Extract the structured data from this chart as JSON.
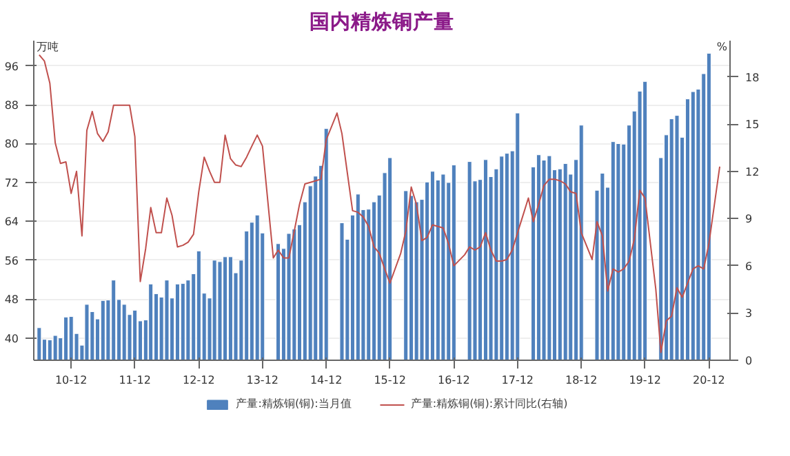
{
  "chart_data": {
    "type": "bar",
    "title": "国内精炼铜产量",
    "ylabel": "万吨",
    "y2label": "%",
    "x": [
      "2010-06",
      "2010-07",
      "2010-08",
      "2010-09",
      "2010-10",
      "2010-11",
      "2010-12",
      "2011-01",
      "2011-02",
      "2011-03",
      "2011-04",
      "2011-05",
      "2011-06",
      "2011-07",
      "2011-08",
      "2011-09",
      "2011-10",
      "2011-11",
      "2011-12",
      "2012-01",
      "2012-02",
      "2012-03",
      "2012-04",
      "2012-05",
      "2012-06",
      "2012-07",
      "2012-08",
      "2012-09",
      "2012-10",
      "2012-11",
      "2012-12",
      "2013-01",
      "2013-02",
      "2013-03",
      "2013-04",
      "2013-05",
      "2013-06",
      "2013-07",
      "2013-08",
      "2013-09",
      "2013-10",
      "2013-11",
      "2013-12",
      "2014-01",
      "2014-02",
      "2014-03",
      "2014-04",
      "2014-05",
      "2014-06",
      "2014-07",
      "2014-08",
      "2014-09",
      "2014-10",
      "2014-11",
      "2014-12",
      "2015-01",
      "2015-02",
      "2015-03",
      "2015-04",
      "2015-05",
      "2015-06",
      "2015-07",
      "2015-08",
      "2015-09",
      "2015-10",
      "2015-11",
      "2015-12",
      "2016-01",
      "2016-02",
      "2016-03",
      "2016-04",
      "2016-05",
      "2016-06",
      "2016-07",
      "2016-08",
      "2016-09",
      "2016-10",
      "2016-11",
      "2016-12",
      "2017-01",
      "2017-02",
      "2017-03",
      "2017-04",
      "2017-05",
      "2017-06",
      "2017-07",
      "2017-08",
      "2017-09",
      "2017-10",
      "2017-11",
      "2017-12",
      "2018-01",
      "2018-02",
      "2018-03",
      "2018-04",
      "2018-05",
      "2018-06",
      "2018-07",
      "2018-08",
      "2018-09",
      "2018-10",
      "2018-11",
      "2018-12",
      "2019-01",
      "2019-02",
      "2019-03",
      "2019-04",
      "2019-05",
      "2019-06",
      "2019-07",
      "2019-08",
      "2019-09",
      "2019-10",
      "2019-11",
      "2019-12",
      "2020-01",
      "2020-02",
      "2020-03",
      "2020-04",
      "2020-05",
      "2020-06",
      "2020-07",
      "2020-08",
      "2020-09",
      "2020-10",
      "2020-11",
      "2020-12"
    ],
    "series": [
      {
        "name": "产量:精炼铜(铜):当月值",
        "color": "#4f81bd",
        "values": [
          42.1,
          39.7,
          39.6,
          40.5,
          40.0,
          44.3,
          44.4,
          40.9,
          38.5,
          46.9,
          45.4,
          43.9,
          47.7,
          47.8,
          51.9,
          47.9,
          46.9,
          44.8,
          45.7,
          43.5,
          43.7,
          51.1,
          49.1,
          48.4,
          51.9,
          48.2,
          51.1,
          51.2,
          51.9,
          53.2,
          57.9,
          49.2,
          48.2,
          56.0,
          55.7,
          56.7,
          56.7,
          53.4,
          56.0,
          62.0,
          63.8,
          65.3,
          61.6,
          null,
          null,
          59.4,
          58.4,
          61.5,
          62.4,
          63.3,
          68.0,
          71.3,
          73.3,
          75.5,
          83.1,
          null,
          null,
          63.7,
          60.3,
          65.3,
          69.6,
          66.4,
          66.5,
          68.0,
          69.4,
          74.0,
          77.1,
          null,
          null,
          70.3,
          69.3,
          68.0,
          68.5,
          72.1,
          74.3,
          72.5,
          73.7,
          72.0,
          75.6,
          null,
          null,
          76.3,
          72.3,
          72.6,
          76.7,
          73.2,
          74.8,
          77.4,
          78.0,
          78.5,
          86.3,
          null,
          null,
          75.2,
          77.7,
          76.6,
          77.5,
          74.6,
          74.8,
          75.9,
          73.7,
          76.7,
          83.8,
          null,
          null,
          70.4,
          73.9,
          71.0,
          80.4,
          80.0,
          79.9,
          83.8,
          86.7,
          90.8,
          92.8,
          null,
          null,
          77.1,
          81.8,
          85.1,
          85.8,
          81.3,
          89.2,
          90.7,
          91.2,
          94.4,
          98.6
        ]
      },
      {
        "name": "产量:精炼铜(铜):累计同比(右轴)",
        "type": "line",
        "axis": "y2",
        "color": "#c0504d",
        "x": [
          "2010-06",
          "2010-07",
          "2010-08",
          "2010-09",
          "2010-10",
          "2010-11",
          "2010-12",
          "2011-01",
          "2011-02",
          "2011-03",
          "2011-04",
          "2011-05",
          "2011-06",
          "2011-07",
          "2011-08",
          "2011-09",
          "2011-10",
          "2011-11",
          "2011-12",
          "2012-01",
          "2012-02",
          "2012-03",
          "2012-04",
          "2012-05",
          "2012-06",
          "2012-07",
          "2012-08",
          "2012-09",
          "2012-10",
          "2012-11",
          "2012-12",
          "2013-01",
          "2013-02",
          "2013-03",
          "2013-04",
          "2013-05",
          "2013-06",
          "2013-07",
          "2013-08",
          "2013-09",
          "2013-10",
          "2013-11",
          "2013-12",
          "2014-02",
          "2014-03",
          "2014-04",
          "2014-05",
          "2014-06",
          "2014-07",
          "2014-08",
          "2014-09",
          "2014-10",
          "2014-11",
          "2014-12",
          "2015-02",
          "2015-03",
          "2015-04",
          "2015-05",
          "2015-06",
          "2015-07",
          "2015-08",
          "2015-09",
          "2015-10",
          "2015-11",
          "2015-12",
          "2016-02",
          "2016-03",
          "2016-04",
          "2016-05",
          "2016-06",
          "2016-07",
          "2016-08",
          "2016-09",
          "2016-10",
          "2016-11",
          "2016-12",
          "2017-02",
          "2017-03",
          "2017-04",
          "2017-05",
          "2017-06",
          "2017-07",
          "2017-08",
          "2017-09",
          "2017-10",
          "2017-11",
          "2017-12",
          "2018-02",
          "2018-03",
          "2018-04",
          "2018-05",
          "2018-06",
          "2018-07",
          "2018-08",
          "2018-09",
          "2018-10",
          "2018-11",
          "2018-12",
          "2019-02",
          "2019-03",
          "2019-04",
          "2019-05",
          "2019-06",
          "2019-07",
          "2019-08",
          "2019-09",
          "2019-10",
          "2019-11",
          "2019-12",
          "2020-02",
          "2020-03",
          "2020-04",
          "2020-05",
          "2020-06",
          "2020-07",
          "2020-08",
          "2020-09",
          "2020-10",
          "2020-11",
          "2020-12",
          "2021-02"
        ],
        "values": [
          19.4,
          19.0,
          17.6,
          13.8,
          12.5,
          12.6,
          10.6,
          12.0,
          7.9,
          14.6,
          15.8,
          14.4,
          13.9,
          14.5,
          16.2,
          16.2,
          16.2,
          16.2,
          14.2,
          5.0,
          7.1,
          9.7,
          8.1,
          8.1,
          10.3,
          9.2,
          7.2,
          7.3,
          7.5,
          8.0,
          10.7,
          12.9,
          12.0,
          11.3,
          11.3,
          14.3,
          12.8,
          12.4,
          12.3,
          12.9,
          13.6,
          14.3,
          13.6,
          6.5,
          7.0,
          6.5,
          6.5,
          8.2,
          9.9,
          11.2,
          11.3,
          11.4,
          11.5,
          14.0,
          15.7,
          14.4,
          11.9,
          9.5,
          9.4,
          9.1,
          8.5,
          7.2,
          6.8,
          5.8,
          4.9,
          6.8,
          8.2,
          11.0,
          9.9,
          7.6,
          7.8,
          8.6,
          8.5,
          8.4,
          7.4,
          6.0,
          6.7,
          7.2,
          7.0,
          7.2,
          8.1,
          7.0,
          6.3,
          6.3,
          6.4,
          7.0,
          8.1,
          10.3,
          8.8,
          9.9,
          11.1,
          11.5,
          11.5,
          11.4,
          11.2,
          10.7,
          10.6,
          8.1,
          6.4,
          8.8,
          7.9,
          4.4,
          5.8,
          5.6,
          5.8,
          6.3,
          7.7,
          10.8,
          10.3,
          4.5,
          0.5,
          2.5,
          2.8,
          4.6,
          4.0,
          4.9,
          5.8,
          6.0,
          5.8,
          7.4,
          12.3
        ]
      }
    ],
    "xlim": [
      "2010-05",
      "2021-04"
    ],
    "xticks": [
      {
        "value": "2010-12",
        "label": "10-12"
      },
      {
        "value": "2011-12",
        "label": "11-12"
      },
      {
        "value": "2012-12",
        "label": "12-12"
      },
      {
        "value": "2013-12",
        "label": "13-12"
      },
      {
        "value": "2014-12",
        "label": "14-12"
      },
      {
        "value": "2015-12",
        "label": "15-12"
      },
      {
        "value": "2016-12",
        "label": "16-12"
      },
      {
        "value": "2017-12",
        "label": "17-12"
      },
      {
        "value": "2018-12",
        "label": "18-12"
      },
      {
        "value": "2019-12",
        "label": "19-12"
      },
      {
        "value": "2020-12",
        "label": "20-12"
      }
    ],
    "ylim": [
      35.4,
      101.2
    ],
    "yticks": [
      40,
      48,
      56,
      64,
      72,
      80,
      88,
      96
    ],
    "y2lim": [
      0,
      20.3
    ],
    "y2ticks": [
      0,
      3,
      6,
      9,
      12,
      15,
      18
    ],
    "grid": "y",
    "legend": "bottom"
  }
}
